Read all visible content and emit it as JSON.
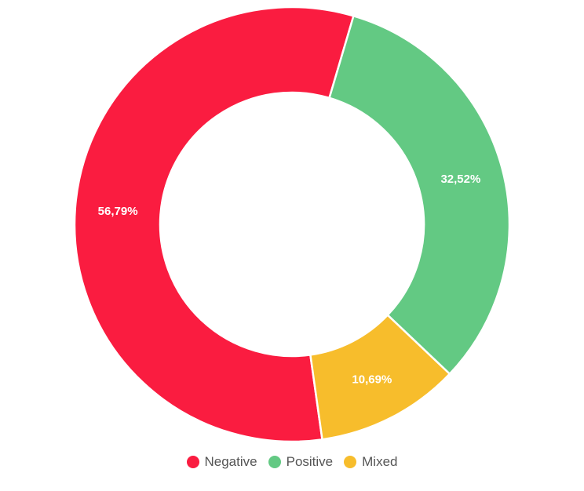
{
  "chart_data": {
    "type": "pie",
    "variant": "donut",
    "title": "",
    "categories": [
      "Negative",
      "Positive",
      "Mixed"
    ],
    "values": [
      56.79,
      32.52,
      10.69
    ],
    "value_labels": [
      "56,79%",
      "32,52%",
      "10,69%"
    ],
    "colors": [
      "#fa1c40",
      "#63c983",
      "#f7bd2c"
    ],
    "legend": "bottom-center",
    "slices": [
      {
        "name": "Negative",
        "value": 56.79,
        "label": "56,79%",
        "color": "#fa1c40"
      },
      {
        "name": "Positive",
        "value": 32.52,
        "label": "32,52%",
        "color": "#63c983"
      },
      {
        "name": "Mixed",
        "value": 10.69,
        "label": "10,69%",
        "color": "#f7bd2c"
      }
    ]
  },
  "legend": {
    "items": [
      {
        "label": "Negative",
        "color": "#fa1c40"
      },
      {
        "label": "Positive",
        "color": "#63c983"
      },
      {
        "label": "Mixed",
        "color": "#f7bd2c"
      }
    ]
  }
}
